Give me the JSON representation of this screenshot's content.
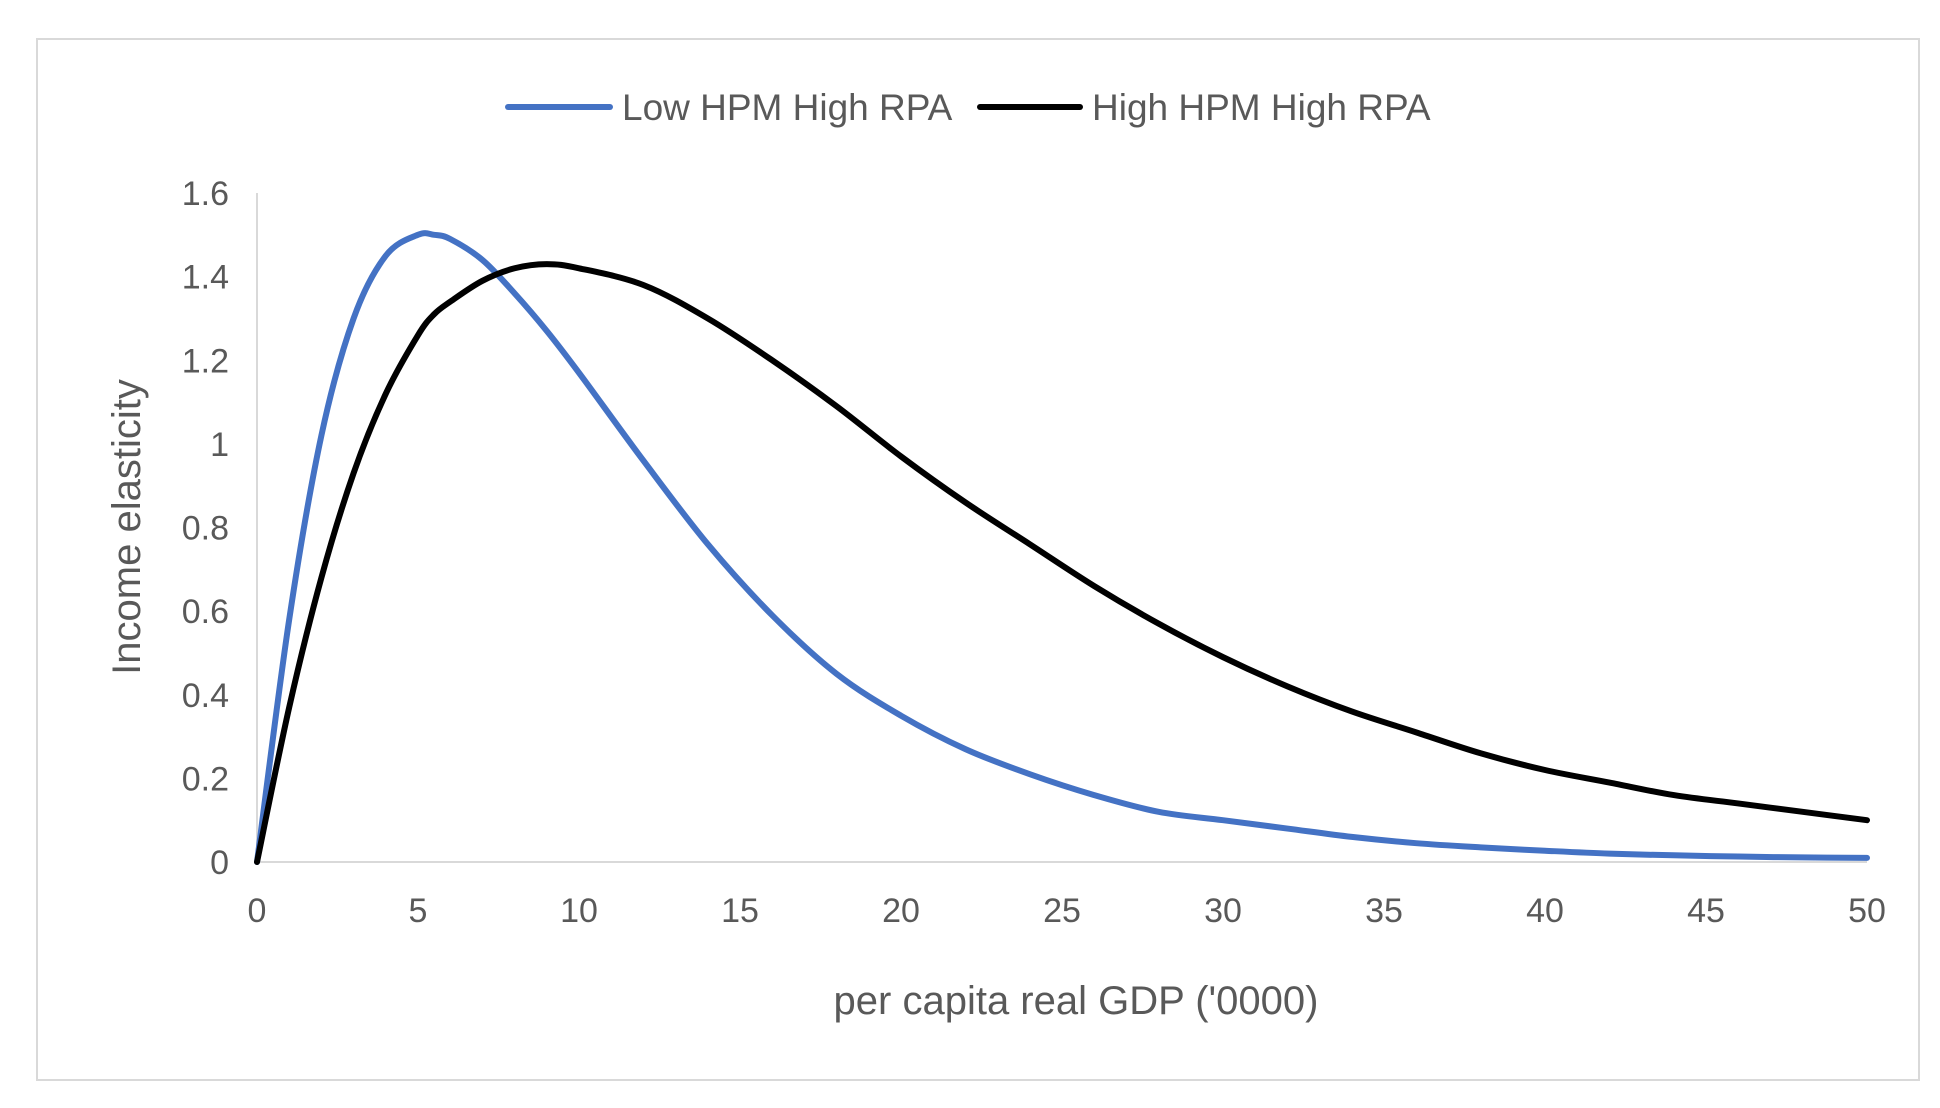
{
  "chart_data": {
    "type": "line",
    "title": "",
    "xlabel": "per capita real GDP ('0000)",
    "ylabel": "Income elasticity",
    "xlim": [
      0,
      50
    ],
    "ylim": [
      0,
      1.6
    ],
    "xticks": [
      0,
      5,
      10,
      15,
      20,
      25,
      30,
      35,
      40,
      45,
      50
    ],
    "yticks": [
      0,
      0.2,
      0.4,
      0.6,
      0.8,
      1,
      1.2,
      1.4,
      1.6
    ],
    "ytick_labels": [
      "0",
      "0.2",
      "0.4",
      "0.6",
      "0.8",
      "1",
      "1.2",
      "1.4",
      "1.6"
    ],
    "grid": false,
    "legend_position": "top-center",
    "x": [
      0,
      1,
      2,
      3,
      4,
      5,
      5.5,
      6,
      7,
      8,
      9,
      10,
      12,
      14,
      16,
      18,
      20,
      22,
      24,
      26,
      28,
      30,
      32,
      34,
      36,
      38,
      40,
      42,
      44,
      46,
      48,
      50
    ],
    "series": [
      {
        "name": "Low HPM High RPA",
        "color": "#4472C4",
        "values": [
          0,
          0.58,
          1.02,
          1.3,
          1.45,
          1.5,
          1.5,
          1.49,
          1.44,
          1.36,
          1.27,
          1.17,
          0.96,
          0.76,
          0.59,
          0.45,
          0.35,
          0.27,
          0.21,
          0.16,
          0.12,
          0.1,
          0.08,
          0.06,
          0.045,
          0.035,
          0.027,
          0.02,
          0.016,
          0.013,
          0.011,
          0.01
        ]
      },
      {
        "name": "High HPM High RPA",
        "color": "#000000",
        "values": [
          0,
          0.37,
          0.68,
          0.93,
          1.12,
          1.26,
          1.31,
          1.34,
          1.39,
          1.42,
          1.43,
          1.42,
          1.38,
          1.3,
          1.2,
          1.09,
          0.97,
          0.86,
          0.76,
          0.66,
          0.57,
          0.49,
          0.42,
          0.36,
          0.31,
          0.26,
          0.22,
          0.19,
          0.16,
          0.14,
          0.12,
          0.1
        ]
      }
    ]
  }
}
